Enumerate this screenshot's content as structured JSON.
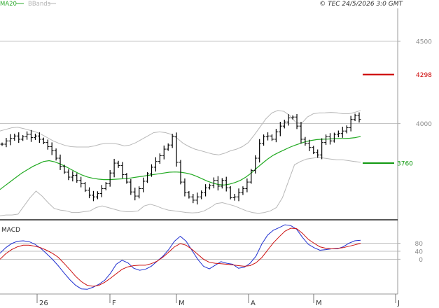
{
  "header": {
    "legend": [
      {
        "label": "MA20",
        "color": "#2eaa2e"
      },
      {
        "label": "BBands",
        "color": "#b4b4b4"
      }
    ],
    "copyright": "© TEC 24/5/2026 3:0 GMT"
  },
  "colors": {
    "price_bars": "#000000",
    "ma20": "#22aa22",
    "bbands": "#b8b8b8",
    "resistance": "#cc0000",
    "support": "#119911",
    "macd_line": "#1f2fd0",
    "signal_line": "#cc1111",
    "grid": "#b0b0b0",
    "axis_text": "#8a8a8a"
  },
  "chart_data": [
    {
      "type": "candlestick",
      "title": "",
      "ylim": [
        3420,
        4700
      ],
      "y_ticks": [
        {
          "value": 4500,
          "label": "4500"
        },
        {
          "value": 4000,
          "label": "4000"
        }
      ],
      "x_ticks": [
        "26",
        "F",
        "M",
        "A",
        "M",
        "J"
      ],
      "levels": [
        {
          "name": "resistance",
          "value": 4298,
          "label": "4298"
        },
        {
          "name": "support",
          "value": 3760,
          "label": "3760"
        }
      ],
      "closes": [
        3875,
        3895,
        3910,
        3925,
        3905,
        3920,
        3935,
        3915,
        3925,
        3905,
        3885,
        3860,
        3835,
        3790,
        3740,
        3705,
        3675,
        3685,
        3655,
        3635,
        3595,
        3565,
        3555,
        3575,
        3605,
        3635,
        3700,
        3760,
        3745,
        3690,
        3645,
        3585,
        3560,
        3605,
        3650,
        3695,
        3735,
        3770,
        3805,
        3845,
        3870,
        3920,
        3765,
        3645,
        3580,
        3555,
        3535,
        3555,
        3580,
        3610,
        3625,
        3655,
        3620,
        3655,
        3610,
        3550,
        3555,
        3580,
        3605,
        3645,
        3715,
        3790,
        3880,
        3920,
        3925,
        3905,
        3950,
        3985,
        4010,
        4035,
        4040,
        3985,
        3905,
        3880,
        3855,
        3825,
        3810,
        3885,
        3920,
        3895,
        3935,
        3940,
        3955,
        3975,
        4025,
        4050,
        4025
      ],
      "ma20": [
        3600,
        3625,
        3650,
        3675,
        3700,
        3720,
        3740,
        3755,
        3770,
        3775,
        3768,
        3755,
        3740,
        3722,
        3704,
        3688,
        3676,
        3668,
        3663,
        3660,
        3660,
        3662,
        3664,
        3666,
        3670,
        3675,
        3680,
        3685,
        3690,
        3695,
        3700,
        3705,
        3706,
        3705,
        3700,
        3692,
        3680,
        3665,
        3650,
        3638,
        3630,
        3627,
        3632,
        3642,
        3655,
        3675,
        3700,
        3730,
        3758,
        3785,
        3808,
        3825,
        3840,
        3856,
        3869,
        3880,
        3891,
        3898,
        3903,
        3905,
        3906,
        3908,
        3910,
        3910,
        3911,
        3915,
        3922
      ],
      "bb_upper": [
        3955,
        3965,
        3975,
        3978,
        3970,
        3960,
        3950,
        3935,
        3915,
        3895,
        3880,
        3868,
        3860,
        3858,
        3858,
        3858,
        3865,
        3875,
        3880,
        3880,
        3875,
        3865,
        3870,
        3885,
        3905,
        3925,
        3945,
        3950,
        3945,
        3935,
        3910,
        3880,
        3860,
        3845,
        3835,
        3825,
        3815,
        3810,
        3820,
        3835,
        3845,
        3860,
        3885,
        3930,
        3980,
        4030,
        4065,
        4080,
        4075,
        4050,
        4010,
        4000,
        4040,
        4060,
        4065,
        4066,
        4068,
        4066,
        4060,
        4060,
        4068,
        4080
      ],
      "bb_lower": [
        3440,
        3445,
        3445,
        3450,
        3500,
        3550,
        3590,
        3560,
        3520,
        3485,
        3475,
        3470,
        3460,
        3460,
        3465,
        3470,
        3490,
        3500,
        3490,
        3480,
        3470,
        3465,
        3465,
        3470,
        3500,
        3510,
        3500,
        3485,
        3475,
        3470,
        3465,
        3460,
        3458,
        3460,
        3470,
        3490,
        3515,
        3520,
        3510,
        3500,
        3485,
        3470,
        3460,
        3455,
        3460,
        3470,
        3490,
        3550,
        3650,
        3750,
        3770,
        3785,
        3790,
        3795,
        3790,
        3785,
        3780,
        3780,
        3775,
        3770,
        3765
      ]
    },
    {
      "type": "line",
      "title": "MACD",
      "ylim": [
        -170,
        190
      ],
      "y_ticks": [
        {
          "value": 80,
          "label": "80"
        },
        {
          "value": 40,
          "label": "40"
        },
        {
          "value": 0,
          "label": "0"
        }
      ],
      "series": [
        {
          "values": [
            30,
            58,
            78,
            90,
            92,
            88,
            75,
            55,
            28,
            0,
            -32,
            -68,
            -102,
            -130,
            -148,
            -150,
            -140,
            -125,
            -105,
            -70,
            -25,
            -5,
            -18,
            -45,
            -55,
            -50,
            -35,
            -10,
            15,
            48,
            90,
            115,
            90,
            45,
            0,
            -35,
            -48,
            -30,
            -12,
            -20,
            -25,
            -45,
            -40,
            -20,
            15,
            75,
            120,
            145,
            158,
            172,
            168,
            150,
            110,
            75,
            58,
            45,
            48,
            52,
            52,
            62,
            80,
            92,
            95
          ]
        },
        {
          "values": [
            0,
            28,
            48,
            62,
            70,
            70,
            65,
            58,
            45,
            30,
            10,
            -20,
            -52,
            -85,
            -112,
            -130,
            -135,
            -130,
            -115,
            -95,
            -72,
            -50,
            -38,
            -32,
            -30,
            -30,
            -22,
            -10,
            10,
            35,
            62,
            78,
            70,
            50,
            25,
            0,
            -15,
            -20,
            -22,
            -25,
            -28,
            -32,
            -35,
            -32,
            -18,
            8,
            45,
            82,
            112,
            140,
            155,
            153,
            130,
            100,
            80,
            62,
            55,
            52,
            54,
            58,
            65,
            72,
            80
          ]
        }
      ]
    }
  ]
}
